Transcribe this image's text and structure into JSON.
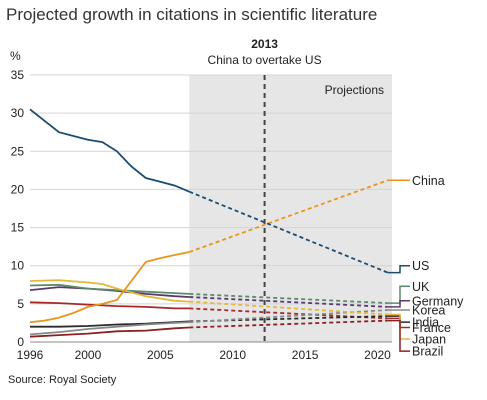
{
  "title": "Projected growth in citations in scientific literature",
  "source": "Source: Royal Society",
  "chart_data": {
    "type": "line",
    "ylabel": "%",
    "ylim": [
      0,
      35
    ],
    "yticks": [
      0,
      5,
      10,
      15,
      20,
      25,
      30,
      35
    ],
    "xlim": [
      1996,
      2021
    ],
    "xticks": [
      1996,
      2000,
      2005,
      2010,
      2015,
      2020
    ],
    "projection_start": 2007,
    "projection_label": "Projections",
    "annotation": {
      "year": 2012.2,
      "title": "2013",
      "text": "China to overtake US"
    },
    "grid": true,
    "series": [
      {
        "name": "US",
        "color": "#1d4c6e",
        "actual": [
          [
            1996,
            30.5
          ],
          [
            1997,
            29.0
          ],
          [
            1998,
            27.5
          ],
          [
            1999,
            27.0
          ],
          [
            2000,
            26.5
          ],
          [
            2001,
            26.2
          ],
          [
            2002,
            25.0
          ],
          [
            2003,
            23.0
          ],
          [
            2004,
            21.5
          ],
          [
            2005,
            21.0
          ],
          [
            2006,
            20.5
          ],
          [
            2007,
            19.7
          ]
        ],
        "projected": [
          [
            2007,
            19.7
          ],
          [
            2020.7,
            9.1
          ]
        ],
        "end_value": 10.0
      },
      {
        "name": "China",
        "color": "#e8951d",
        "actual": [
          [
            1996,
            2.6
          ],
          [
            1997,
            2.8
          ],
          [
            1998,
            3.2
          ],
          [
            1999,
            3.8
          ],
          [
            2000,
            4.6
          ],
          [
            2001,
            5.0
          ],
          [
            2002,
            5.5
          ],
          [
            2003,
            8.0
          ],
          [
            2004,
            10.5
          ],
          [
            2005,
            11.0
          ],
          [
            2006,
            11.4
          ],
          [
            2007,
            11.8
          ]
        ],
        "projected": [
          [
            2007,
            11.8
          ],
          [
            2020.7,
            21.2
          ]
        ],
        "end_value": 21.2
      },
      {
        "name": "UK",
        "color": "#5b8a6c",
        "actual": [
          [
            1996,
            7.4
          ],
          [
            1998,
            7.5
          ],
          [
            2000,
            7.0
          ],
          [
            2002,
            6.8
          ],
          [
            2004,
            6.6
          ],
          [
            2005,
            6.5
          ],
          [
            2007,
            6.3
          ]
        ],
        "projected": [
          [
            2007,
            6.3
          ],
          [
            2020.7,
            5.1
          ]
        ],
        "end_value": 7.3
      },
      {
        "name": "Germany",
        "color": "#5a3a6e",
        "actual": [
          [
            1996,
            6.8
          ],
          [
            1998,
            7.2
          ],
          [
            2000,
            7.0
          ],
          [
            2002,
            6.7
          ],
          [
            2004,
            6.3
          ],
          [
            2006,
            6.0
          ],
          [
            2007,
            5.9
          ]
        ],
        "projected": [
          [
            2007,
            5.9
          ],
          [
            2020.7,
            4.6
          ]
        ],
        "end_value": 5.4
      },
      {
        "name": "Korea",
        "color": "#888888",
        "actual": [
          [
            1996,
            1.0
          ],
          [
            1998,
            1.3
          ],
          [
            2000,
            1.7
          ],
          [
            2002,
            2.0
          ],
          [
            2004,
            2.3
          ],
          [
            2006,
            2.5
          ],
          [
            2007,
            2.6
          ]
        ],
        "projected": [
          [
            2007,
            2.6
          ],
          [
            2020.7,
            4.2
          ]
        ],
        "end_value": 4.2
      },
      {
        "name": "India",
        "color": "#2a2a2a",
        "actual": [
          [
            1996,
            2.0
          ],
          [
            1998,
            2.0
          ],
          [
            2000,
            2.1
          ],
          [
            2002,
            2.3
          ],
          [
            2004,
            2.4
          ],
          [
            2006,
            2.6
          ],
          [
            2007,
            2.7
          ]
        ],
        "projected": [
          [
            2007,
            2.7
          ],
          [
            2020.7,
            3.4
          ]
        ],
        "end_value": 2.6
      },
      {
        "name": "France",
        "color": "#a8282b",
        "actual": [
          [
            1996,
            5.2
          ],
          [
            1998,
            5.1
          ],
          [
            2000,
            4.9
          ],
          [
            2002,
            4.7
          ],
          [
            2004,
            4.6
          ],
          [
            2006,
            4.4
          ],
          [
            2007,
            4.4
          ]
        ],
        "projected": [
          [
            2007,
            4.4
          ],
          [
            2020.7,
            3.1
          ]
        ],
        "end_value": 1.9
      },
      {
        "name": "Japan",
        "color": "#e3b93a",
        "actual": [
          [
            1996,
            8.0
          ],
          [
            1998,
            8.1
          ],
          [
            2000,
            7.8
          ],
          [
            2001,
            7.6
          ],
          [
            2002,
            7.0
          ],
          [
            2004,
            6.0
          ],
          [
            2006,
            5.4
          ],
          [
            2007,
            5.3
          ]
        ],
        "projected": [
          [
            2007,
            5.3
          ],
          [
            2020.7,
            3.6
          ]
        ],
        "end_value": 0.4
      },
      {
        "name": "Brazil",
        "color": "#8b2020",
        "actual": [
          [
            1996,
            0.7
          ],
          [
            1998,
            0.9
          ],
          [
            2000,
            1.1
          ],
          [
            2002,
            1.4
          ],
          [
            2004,
            1.5
          ],
          [
            2006,
            1.8
          ],
          [
            2007,
            1.9
          ]
        ],
        "projected": [
          [
            2007,
            1.9
          ],
          [
            2020.7,
            2.8
          ]
        ],
        "end_value": -1.2
      }
    ]
  }
}
